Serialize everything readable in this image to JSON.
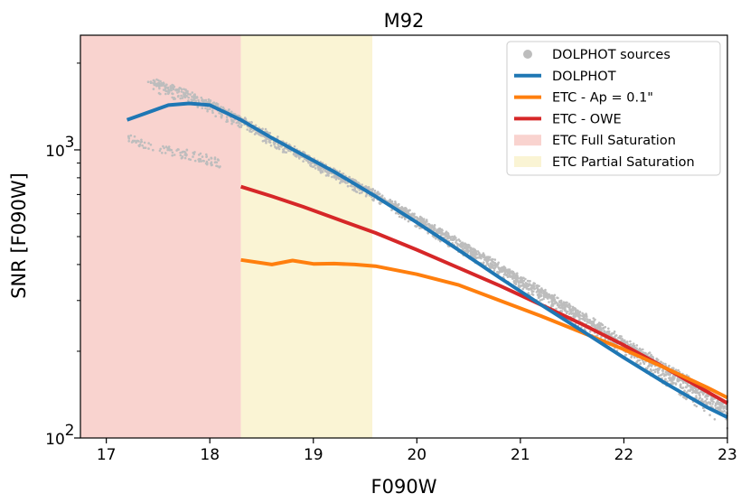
{
  "chart_data": {
    "type": "line",
    "title": "M92",
    "xlabel": "F090W",
    "ylabel": "SNR [F090W]",
    "xlim": [
      16.75,
      23.0
    ],
    "ylim": [
      100,
      2500
    ],
    "yscale": "log",
    "x_ticks": [
      17,
      18,
      19,
      20,
      21,
      22,
      23
    ],
    "x_tick_labels": [
      "17",
      "18",
      "19",
      "20",
      "21",
      "22",
      "23"
    ],
    "y_ticks": [
      {
        "value": 100,
        "base": "10",
        "exp": "2"
      },
      {
        "value": 1000,
        "base": "10",
        "exp": "3"
      }
    ],
    "legend_position": "top-right",
    "regions": [
      {
        "name": "ETC Full Saturation",
        "x0": 16.75,
        "x1": 18.3,
        "color": "#f9d3cf"
      },
      {
        "name": "ETC Partial Saturation",
        "x0": 18.3,
        "x1": 19.57,
        "color": "#faf4d4"
      }
    ],
    "scatter": {
      "name": "DOLPHOT sources",
      "color": "#bdbdbd",
      "upper_branch": {
        "x": [
          17.4,
          17.7,
          18.0,
          18.3,
          19.0,
          19.5,
          20.0,
          20.5,
          21.0,
          21.5,
          22.0,
          22.5,
          23.0
        ],
        "y": [
          1800,
          1670,
          1500,
          1330,
          940,
          760,
          600,
          470,
          370,
          290,
          225,
          175,
          135
        ]
      },
      "lower_branch": {
        "x": [
          17.4,
          17.7,
          18.0,
          18.3,
          19.0,
          19.5,
          20.0,
          20.5,
          21.0,
          21.5,
          22.0,
          22.5,
          23.0
        ],
        "y": [
          1620,
          1480,
          1340,
          1180,
          860,
          690,
          540,
          420,
          325,
          250,
          190,
          145,
          108
        ]
      },
      "offshoot": {
        "x": [
          17.2,
          17.5,
          17.8,
          18.1
        ],
        "y": [
          1100,
          1010,
          960,
          900
        ]
      }
    },
    "series": [
      {
        "name": "DOLPHOT",
        "color": "#1f77b4",
        "x": [
          17.2,
          17.6,
          17.8,
          18.0,
          18.3,
          18.6,
          18.9,
          19.2,
          19.6,
          20.0,
          20.4,
          20.8,
          21.2,
          21.6,
          22.0,
          22.4,
          22.8,
          23.0
        ],
        "y": [
          1270,
          1430,
          1450,
          1430,
          1270,
          1100,
          960,
          840,
          690,
          560,
          450,
          360,
          290,
          235,
          190,
          155,
          128,
          118
        ]
      },
      {
        "name": "ETC - Ap = 0.1\"",
        "color": "#ff7f0e",
        "x": [
          18.3,
          18.6,
          18.8,
          19.0,
          19.2,
          19.4,
          19.6,
          20.0,
          20.4,
          20.8,
          21.2,
          21.6,
          22.0,
          22.4,
          22.8,
          23.0
        ],
        "y": [
          415,
          400,
          413,
          402,
          403,
          400,
          395,
          370,
          340,
          300,
          265,
          232,
          203,
          175,
          150,
          138
        ]
      },
      {
        "name": "ETC - OWE",
        "color": "#d62728",
        "x": [
          18.3,
          18.6,
          18.9,
          19.2,
          19.6,
          20.0,
          20.4,
          20.8,
          21.2,
          21.6,
          22.0,
          22.4,
          22.8,
          23.0
        ],
        "y": [
          745,
          690,
          635,
          580,
          515,
          450,
          390,
          338,
          290,
          248,
          210,
          175,
          145,
          132
        ]
      }
    ],
    "legend": [
      {
        "label": "DOLPHOT sources",
        "kind": "marker",
        "color": "#bdbdbd"
      },
      {
        "label": "DOLPHOT",
        "kind": "line",
        "color": "#1f77b4"
      },
      {
        "label": "ETC - Ap = 0.1\"",
        "kind": "line",
        "color": "#ff7f0e"
      },
      {
        "label": "ETC - OWE",
        "kind": "line",
        "color": "#d62728"
      },
      {
        "label": "ETC Full Saturation",
        "kind": "patch",
        "color": "#f9d3cf"
      },
      {
        "label": "ETC Partial Saturation",
        "kind": "patch",
        "color": "#faf4d4"
      }
    ]
  }
}
